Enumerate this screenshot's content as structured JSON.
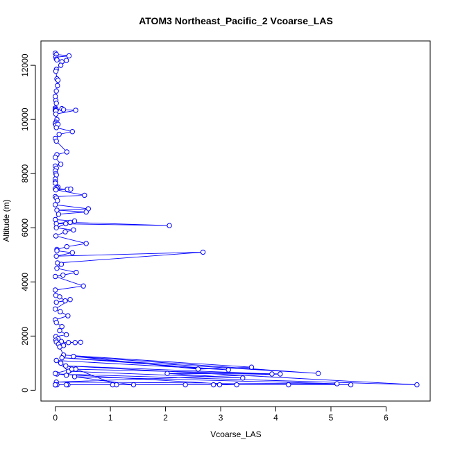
{
  "chart_data": {
    "type": "line",
    "title": "ATOM3 Northeast_Pacific_2 Vcoarse_LAS",
    "xlabel": "Vcoarse_LAS",
    "ylabel": "Altitude (m)",
    "xlim": [
      -0.26,
      6.8
    ],
    "ylim": [
      -400,
      12900
    ],
    "xticks": [
      0,
      1,
      2,
      3,
      4,
      5,
      6
    ],
    "yticks": [
      0,
      2000,
      4000,
      6000,
      8000,
      10000,
      12000
    ],
    "series": [
      {
        "marker": "open-circle",
        "color": "#0000ff",
        "x": [
          0.0,
          0.02,
          0.25,
          0.01,
          0.02,
          0.03,
          0.2,
          0.12,
          0.1,
          0.02,
          0.01,
          0.03,
          0.05,
          0.04,
          0.02,
          0.0,
          0.01,
          0.02,
          0.0,
          0.0,
          0.02,
          0.0,
          0.01,
          0.12,
          0.15,
          0.37,
          0.01,
          0.03,
          0.01,
          0.0,
          0.01,
          0.05,
          0.02,
          0.31,
          0.07,
          0.0,
          0.02,
          0.21,
          0.03,
          0.0,
          0.1,
          0.0,
          0.02,
          0.0,
          0.01,
          0.02,
          0.0,
          0.0,
          0.0,
          0.05,
          0.03,
          0.0,
          0.22,
          0.28,
          0.01,
          0.53,
          0.0,
          0.02,
          0.04,
          0.0,
          0.6,
          0.03,
          0.56,
          0.06,
          0.0,
          0.35,
          0.02,
          2.07,
          0.27,
          0.19,
          0.02,
          0.33,
          0.18,
          0.01,
          0.56,
          0.21,
          0.03,
          0.03,
          0.31,
          0.02,
          2.68,
          0.04,
          0.11,
          0.03,
          0.38,
          0.14,
          0.0,
          0.51,
          0.0,
          0.01,
          0.08,
          0.18,
          0.02,
          0.27,
          0.0,
          0.09,
          0.23,
          0.0,
          0.02,
          0.12,
          0.08,
          0.2,
          0.01,
          0.05,
          0.01,
          0.11,
          0.02,
          0.36,
          0.46,
          0.24,
          0.06,
          0.15,
          0.08,
          0.15,
          3.56,
          2.59,
          0.33,
          4.77,
          0.12,
          3.14,
          0.02,
          0.24,
          3.4,
          2.03,
          3.93,
          0.19,
          6.56,
          0.03,
          3.29,
          1.11,
          0.1,
          0.37,
          0.2,
          0.0,
          0.3,
          4.08,
          0.02,
          5.11,
          0.35,
          1.42,
          0.0,
          2.98,
          0.03,
          1.04,
          2.87,
          0.23,
          5.36,
          0.0,
          4.23,
          2.36,
          0.2,
          0.0
        ],
        "y": [
          12450,
          12400,
          12350,
          12300,
          12230,
          12200,
          12180,
          12130,
          12000,
          11850,
          11780,
          11500,
          11450,
          11250,
          11050,
          10850,
          10700,
          10600,
          10420,
          10380,
          10350,
          10330,
          10320,
          10400,
          10360,
          10340,
          10200,
          10000,
          9900,
          9850,
          9800,
          9820,
          9700,
          9550,
          9450,
          9300,
          9200,
          8800,
          8700,
          8600,
          8350,
          8280,
          8200,
          8100,
          8000,
          7950,
          7800,
          7700,
          7650,
          7500,
          7480,
          7450,
          7420,
          7430,
          7400,
          7200,
          7150,
          7100,
          7000,
          6850,
          6700,
          6650,
          6580,
          6500,
          6300,
          6250,
          6150,
          6080,
          6200,
          6150,
          6000,
          5920,
          5850,
          5700,
          5420,
          5300,
          5200,
          5150,
          5080,
          4950,
          5100,
          4700,
          4650,
          4500,
          4350,
          4250,
          4200,
          3850,
          3700,
          3500,
          3450,
          3300,
          3250,
          3350,
          3000,
          2900,
          2750,
          2600,
          2500,
          2350,
          2200,
          2050,
          1980,
          1900,
          1850,
          1800,
          1780,
          1760,
          1770,
          1760,
          1700,
          1650,
          1600,
          1300,
          850,
          780,
          1250,
          620,
          1200,
          750,
          1100,
          700,
          450,
          620,
          600,
          900,
          200,
          600,
          200,
          200,
          1000,
          780,
          550,
          620,
          780,
          600,
          300,
          240,
          500,
          200,
          200,
          200,
          200,
          200,
          200,
          200,
          200,
          200,
          200,
          200,
          200,
          200
        ]
      }
    ],
    "grid": false,
    "legend": "none"
  }
}
